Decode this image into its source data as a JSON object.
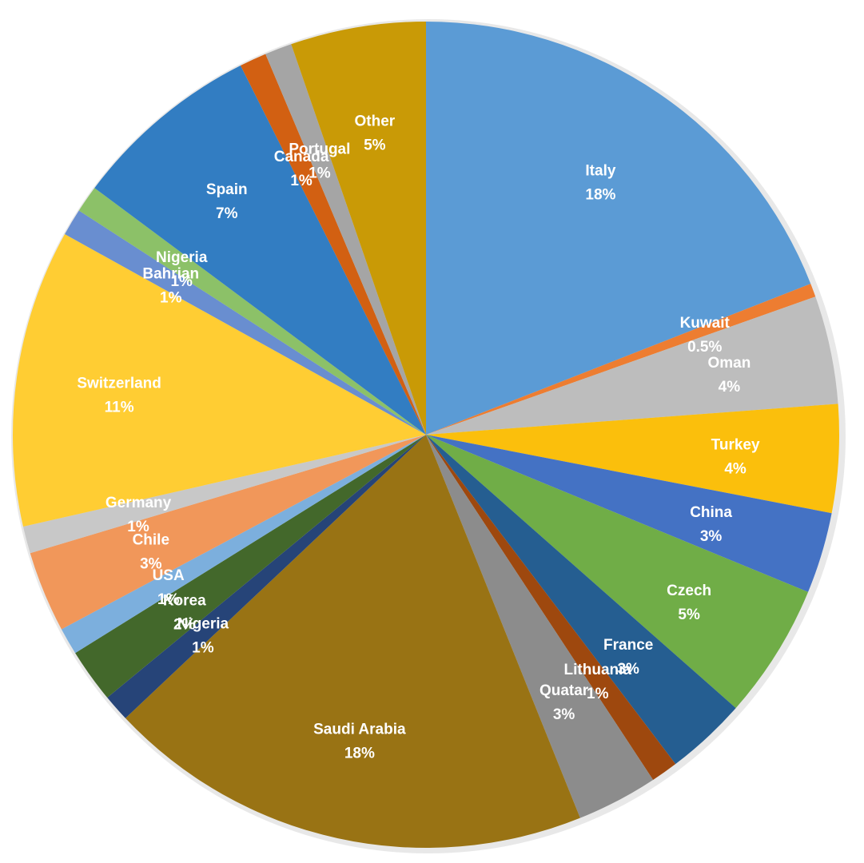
{
  "chart_data": {
    "type": "pie",
    "start": "12 o'clock",
    "direction": "clockwise",
    "slices": [
      {
        "name": "Italy",
        "value": 18,
        "label": "18%",
        "color": "#5b9bd5"
      },
      {
        "name": "Kuwait",
        "value": 0.5,
        "label": "0.5%",
        "color": "#ed7d31"
      },
      {
        "name": "Oman",
        "value": 4,
        "label": "4%",
        "color": "#bdbdbd"
      },
      {
        "name": "Turkey",
        "value": 4,
        "label": "4%",
        "color": "#fbbf0c"
      },
      {
        "name": "China",
        "value": 3,
        "label": "3%",
        "color": "#4472c4"
      },
      {
        "name": "Czech",
        "value": 5,
        "label": "5%",
        "color": "#70ad47"
      },
      {
        "name": "France",
        "value": 3,
        "label": "3%",
        "color": "#255e91"
      },
      {
        "name": "Lithuania",
        "value": 1,
        "label": "1%",
        "color": "#9e480e"
      },
      {
        "name": "Quatar",
        "value": 3,
        "label": "3%",
        "color": "#8c8c8c"
      },
      {
        "name": "Saudi Arabia",
        "value": 18,
        "label": "18%",
        "color": "#997314"
      },
      {
        "name": "Nigeria",
        "value": 1,
        "label": "1%",
        "color": "#264478"
      },
      {
        "name": "Korea",
        "value": 2,
        "label": "2%",
        "color": "#43682b"
      },
      {
        "name": "USA",
        "value": 1,
        "label": "1%",
        "color": "#7cafdd"
      },
      {
        "name": "Chile",
        "value": 3,
        "label": "3%",
        "color": "#f1975a"
      },
      {
        "name": "Germany",
        "value": 1,
        "label": "1%",
        "color": "#c8c8c8"
      },
      {
        "name": "Switzerland",
        "value": 11,
        "label": "11%",
        "color": "#ffcd33"
      },
      {
        "name": "Bahrian",
        "value": 1,
        "label": "1%",
        "color": "#698ed0"
      },
      {
        "name": "Nigeria",
        "value": 1,
        "label": "1%",
        "color": "#8cc168"
      },
      {
        "name": "Spain",
        "value": 7,
        "label": "7%",
        "color": "#327dc2"
      },
      {
        "name": "Canada",
        "value": 1,
        "label": "1%",
        "color": "#d26012"
      },
      {
        "name": "Portugal",
        "value": 1,
        "label": "1%",
        "color": "#a5a5a5"
      },
      {
        "name": "Other",
        "value": 5,
        "label": "5%",
        "color": "#c99a06"
      }
    ]
  }
}
